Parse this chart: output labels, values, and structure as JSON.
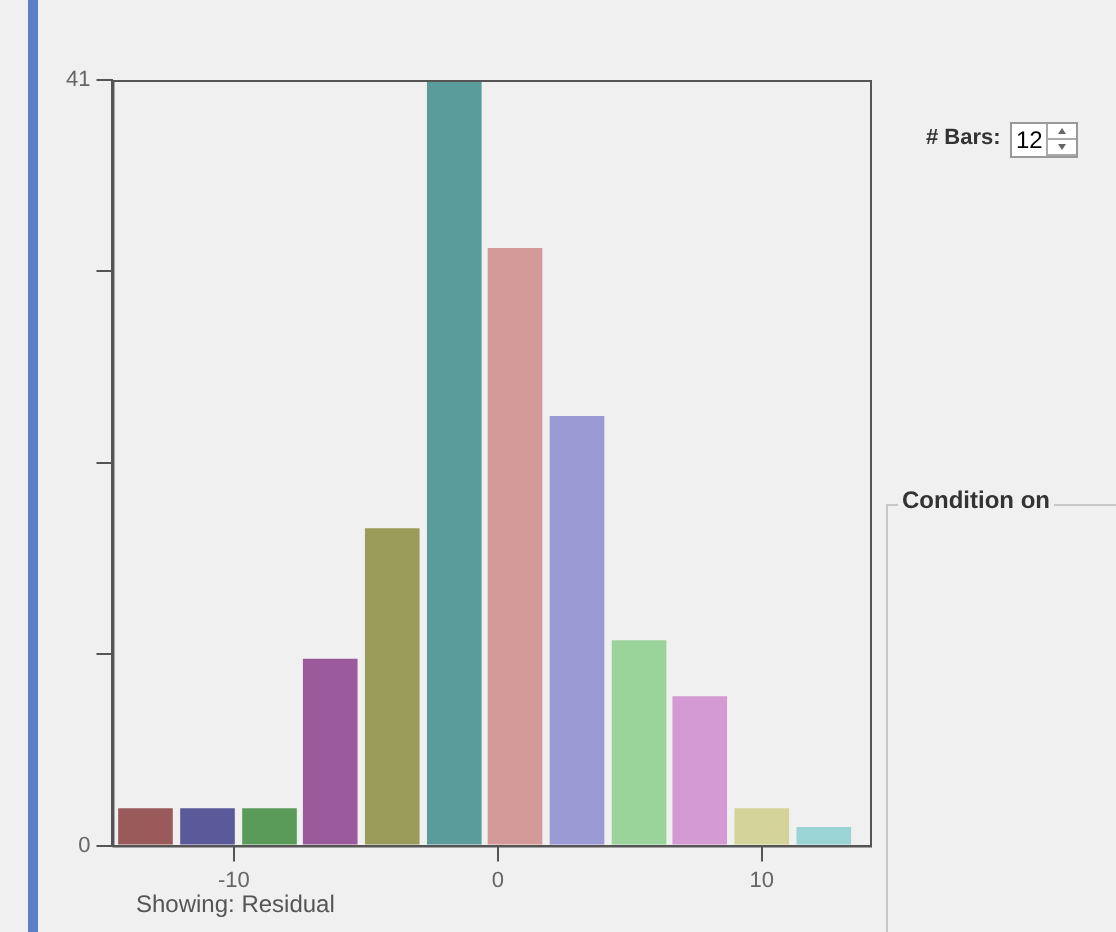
{
  "chart_data": {
    "type": "histogram",
    "bins": [
      -14.5,
      -12.2,
      -9.8,
      -7.5,
      -5.2,
      -2.8,
      -0.5,
      1.8,
      4.2,
      6.5,
      8.8,
      11.2,
      13.5
    ],
    "values": [
      2,
      2,
      2,
      10,
      17,
      41,
      32,
      23,
      11,
      8,
      2,
      1
    ],
    "colors": [
      "#9b5a5a",
      "#5a5a9b",
      "#5a9b5a",
      "#9b5a9b",
      "#9b9b5a",
      "#5a9b9b",
      "#d49a9a",
      "#9a9ad4",
      "#9ad49a",
      "#d49ad4",
      "#d4d49a",
      "#9ad4d4"
    ],
    "xlim": [
      -14.6,
      14.1
    ],
    "xticks": [
      -10,
      0,
      10
    ],
    "ylim": [
      0,
      41
    ],
    "yticks": [
      0,
      {
        "value": 10.25,
        "label": null
      },
      {
        "value": 20.5,
        "label": null
      },
      {
        "value": 30.75,
        "label": null
      },
      41
    ],
    "grid": false,
    "legend": false,
    "annotations": [
      "Showing: Residual",
      "# Bars:",
      "12",
      "Condition on"
    ]
  }
}
